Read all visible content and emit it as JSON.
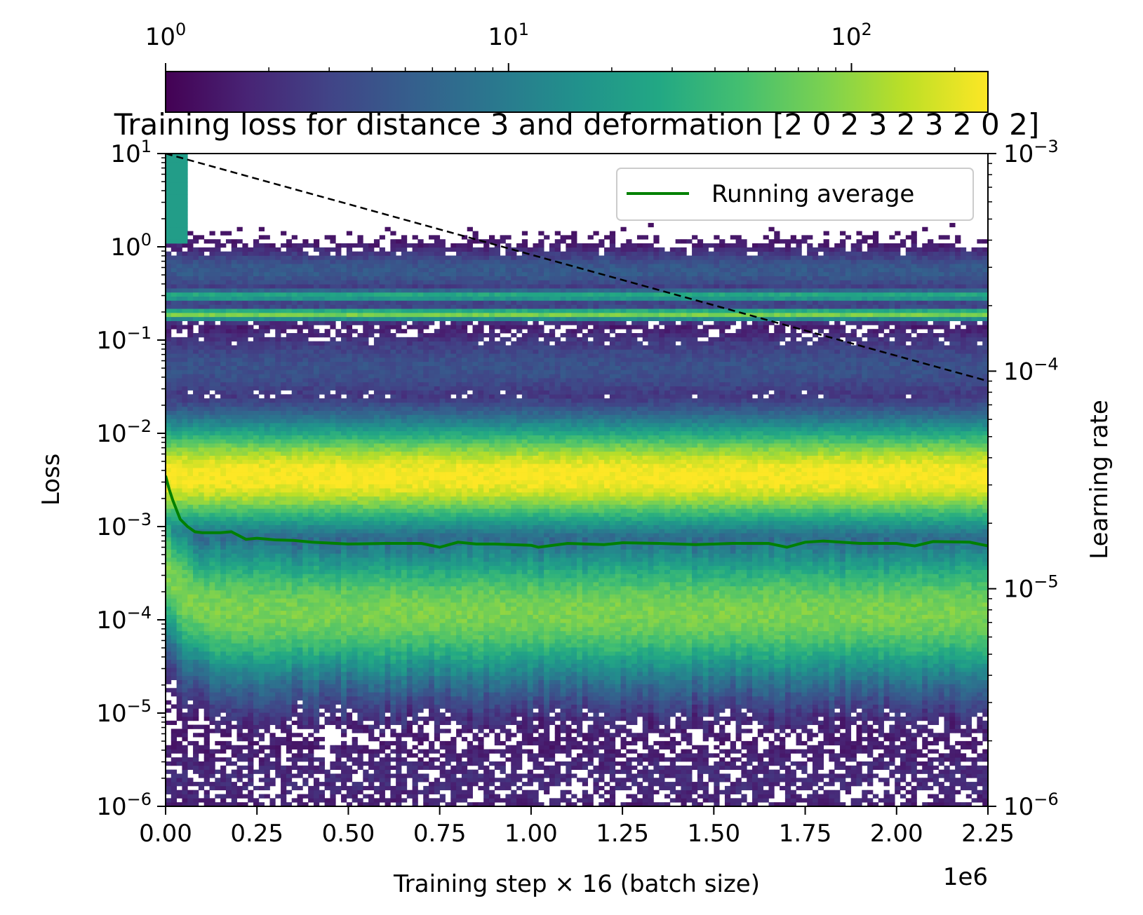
{
  "chart_data": {
    "type": "heatmap",
    "title": "Training loss for distance 3 and deformation [2 0 2 3 2 3 2 0 2]",
    "xlabel": "Training step × 16 (batch size)",
    "x_offset_label": "1e6",
    "ylabel": "Loss",
    "y2label": "Learning rate",
    "xlim": [
      0.0,
      2.25
    ],
    "x_ticks": [
      "0.00",
      "0.25",
      "0.50",
      "0.75",
      "1.00",
      "1.25",
      "1.50",
      "1.75",
      "2.00",
      "2.25"
    ],
    "y_scale": "log",
    "ylim": [
      1e-06,
      10
    ],
    "y_ticks": [
      {
        "base": "10",
        "exp": "−6"
      },
      {
        "base": "10",
        "exp": "−5"
      },
      {
        "base": "10",
        "exp": "−4"
      },
      {
        "base": "10",
        "exp": "−3"
      },
      {
        "base": "10",
        "exp": "−2"
      },
      {
        "base": "10",
        "exp": "−1"
      },
      {
        "base": "10",
        "exp": "0"
      },
      {
        "base": "10",
        "exp": "1"
      }
    ],
    "y2_scale": "log",
    "y2lim": [
      1e-06,
      0.001
    ],
    "y2_ticks": [
      {
        "base": "10",
        "exp": "−6"
      },
      {
        "base": "10",
        "exp": "−5"
      },
      {
        "base": "10",
        "exp": "−4"
      },
      {
        "base": "10",
        "exp": "−3"
      }
    ],
    "colorbar": {
      "colormap": "viridis",
      "scale": "log",
      "range": [
        1,
        250
      ],
      "ticks": [
        {
          "base": "10",
          "exp": "0"
        },
        {
          "base": "10",
          "exp": "1"
        },
        {
          "base": "10",
          "exp": "2"
        }
      ],
      "colors": [
        "#440154",
        "#482475",
        "#414487",
        "#355f8d",
        "#2a788e",
        "#21918c",
        "#22a884",
        "#44bf70",
        "#7ad151",
        "#bddf26",
        "#fde725"
      ]
    },
    "density_bands": [
      {
        "loss_center": 0.0035,
        "peak": 1.0,
        "width_decades": 0.45
      },
      {
        "loss_center": 0.00012,
        "peak": 0.8,
        "width_decades": 0.6
      },
      {
        "loss_center": 0.19,
        "peak": 0.8,
        "width_decades": 0.05
      },
      {
        "loss_center": 0.3,
        "peak": 0.62,
        "width_decades": 0.05
      },
      {
        "loss_center": 0.55,
        "peak": 0.28,
        "width_decades": 0.18
      },
      {
        "loss_center": 0.05,
        "peak": 0.25,
        "width_decades": 0.3
      },
      {
        "loss_center": 2e-06,
        "peak": 0.12,
        "width_decades": 0.35
      }
    ],
    "series": [
      {
        "name": "Running average",
        "color": "#008000",
        "axis": "left",
        "x": [
          0.0,
          0.01,
          0.02,
          0.04,
          0.06,
          0.08,
          0.1,
          0.15,
          0.18,
          0.22,
          0.25,
          0.3,
          0.35,
          0.4,
          0.5,
          0.6,
          0.7,
          0.75,
          0.8,
          0.85,
          0.9,
          1.0,
          1.02,
          1.1,
          1.2,
          1.25,
          1.35,
          1.45,
          1.55,
          1.65,
          1.7,
          1.75,
          1.8,
          1.9,
          2.0,
          2.05,
          2.1,
          2.2,
          2.25
        ],
        "y": [
          0.0035,
          0.0025,
          0.0019,
          0.0012,
          0.001,
          0.00088,
          0.00086,
          0.00086,
          0.00088,
          0.00073,
          0.00075,
          0.00072,
          0.00071,
          0.00068,
          0.00065,
          0.00066,
          0.00066,
          0.0006,
          0.00068,
          0.00065,
          0.00065,
          0.00063,
          0.0006,
          0.00066,
          0.00064,
          0.00067,
          0.00066,
          0.00064,
          0.00066,
          0.00066,
          0.0006,
          0.00068,
          0.0007,
          0.00066,
          0.00066,
          0.00062,
          0.00069,
          0.00068,
          0.00062
        ]
      },
      {
        "name": "",
        "color": "#000000",
        "style": "dashed",
        "axis": "right",
        "x": [
          0.0,
          2.25
        ],
        "y": [
          0.001,
          9e-05
        ]
      }
    ],
    "legend": {
      "placement": "top-right",
      "entries": [
        "Running average"
      ]
    }
  }
}
